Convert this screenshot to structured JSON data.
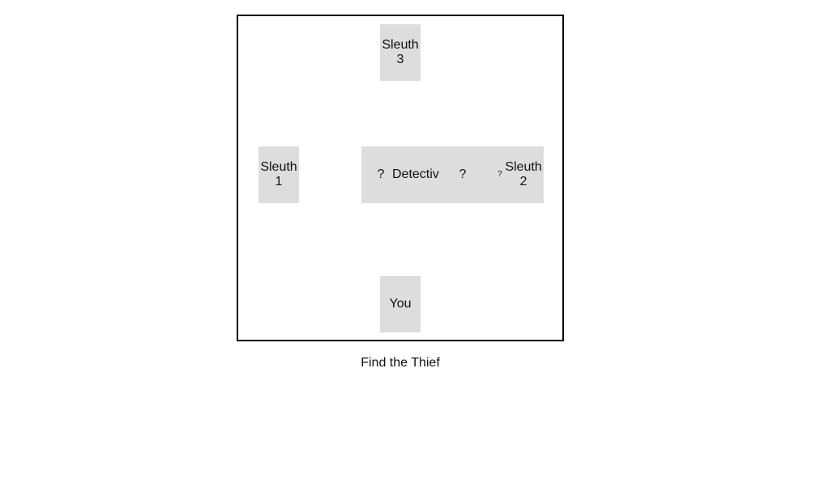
{
  "board": {
    "top_tile": {
      "line1": "Sleuth",
      "line2": "3"
    },
    "left_tile": {
      "line1": "Sleuth",
      "line2": "1"
    },
    "bottom_tile": {
      "label": "You"
    },
    "center_row": {
      "q1": "?",
      "detective": "Detectiv",
      "q2": "?",
      "q3": "?",
      "right_line1": "Sleuth",
      "right_line2": "2"
    }
  },
  "caption": "Find the Thief"
}
